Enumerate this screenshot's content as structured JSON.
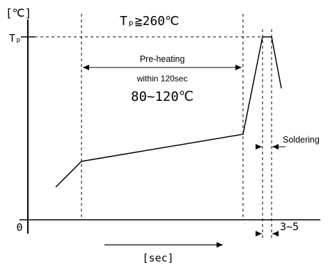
{
  "diagram": {
    "y_unit": "[℃]",
    "peak_symbol": "Tₚ",
    "peak_condition": "Tₚ≧260℃",
    "preheat_title": "Pre-heating",
    "preheat_time": "within 120sec",
    "preheat_temp": "80~120℃",
    "soldering_label": "Soldering",
    "soldering_time": "3~5",
    "origin_label": "0",
    "x_unit": "[sec]",
    "line_color": "#000000"
  }
}
